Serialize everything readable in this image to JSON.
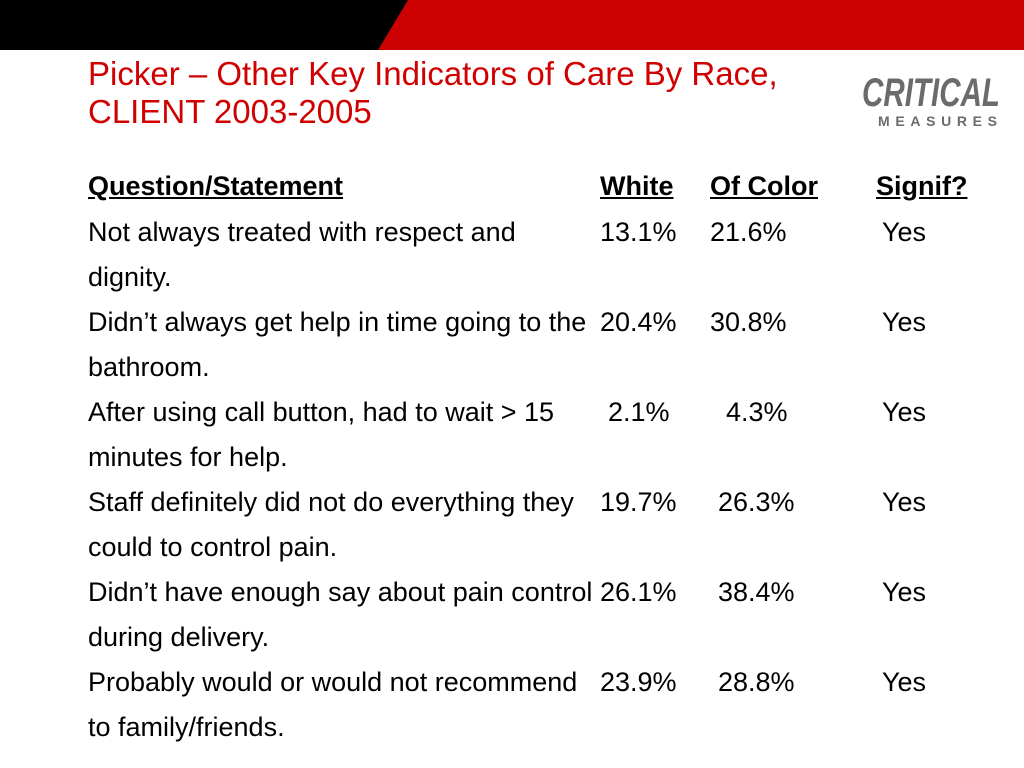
{
  "title": {
    "line1": "Picker – Other Key Indicators of Care By Race,",
    "line2": "CLIENT 2003-2005"
  },
  "logo": {
    "top": "CRITICAL",
    "bottom": "MEASURES"
  },
  "colors": {
    "title": "#d00000",
    "bar_black": "#000000",
    "bar_red": "#cc0000",
    "logo_gray": "#6b6b6b"
  },
  "table": {
    "headers": {
      "question": "Question/Statement",
      "white": "White",
      "of_color": "Of Color",
      "signif": "Signif?"
    },
    "rows": [
      {
        "question": "Not always treated with respect and dignity.",
        "white": "13.1%",
        "of_color": "21.6%",
        "signif": "Yes"
      },
      {
        "question": "Didn’t always get help in time going to the bathroom.",
        "white": "20.4%",
        "of_color": "30.8%",
        "signif": "Yes"
      },
      {
        "question": "After using call button, had to wait > 15 minutes for help.",
        "white": "2.1%",
        "of_color": "4.3%",
        "signif": "Yes"
      },
      {
        "question": "Staff definitely did not do everything they could to control pain.",
        "white": "19.7%",
        "of_color": "26.3%",
        "signif": "Yes"
      },
      {
        "question": "Didn’t have enough say about pain control during delivery.",
        "white": "26.1%",
        "of_color": "38.4%",
        "signif": "Yes"
      },
      {
        "question": "Probably would or would not recommend to family/friends.",
        "white": "23.9%",
        "of_color": "28.8%",
        "signif": "Yes"
      }
    ]
  }
}
